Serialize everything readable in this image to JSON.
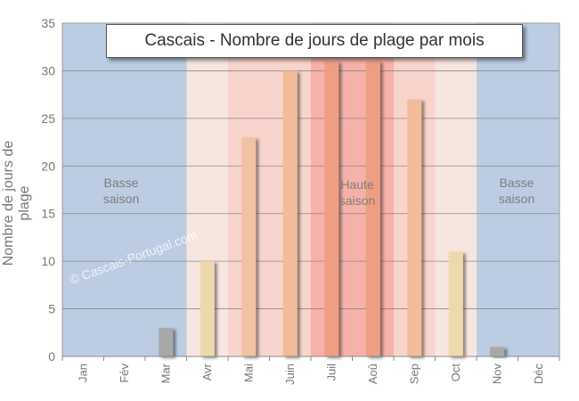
{
  "chart_data": {
    "type": "bar",
    "title": "Cascais - Nombre de jours de plage par mois",
    "ylabel": "Nombre de jours de plage",
    "xlabel": "",
    "categories": [
      "Jan",
      "Fév",
      "Mar",
      "Avr",
      "Mai",
      "Juin",
      "Juil",
      "Aoû",
      "Sep",
      "Oct",
      "Nov",
      "Déc"
    ],
    "values": [
      0,
      0,
      3,
      10,
      23,
      30,
      31,
      31,
      27,
      11,
      1,
      0
    ],
    "ylim": [
      0,
      35
    ],
    "yticks": [
      0,
      5,
      10,
      15,
      20,
      25,
      30,
      35
    ],
    "grid": true,
    "season_labels": {
      "low_left": [
        "Basse",
        "saison"
      ],
      "high": [
        "Haute",
        "saison"
      ],
      "low_right": [
        "Basse",
        "saison"
      ]
    },
    "watermark": "© Cascais-Portugal.com",
    "bar_colors": [
      "#a8a8a8",
      "#a8a8a8",
      "#a8a8a8",
      "#eed9ae",
      "#f1c3a3",
      "#f2bc9a",
      "#ee9f82",
      "#ee9f82",
      "#f2bc9a",
      "#eed9ae",
      "#a8a8a8",
      "#a8a8a8"
    ],
    "month_background_colors": [
      "#bccde3",
      "#bccde3",
      "#bccde3",
      "#f7e6df",
      "#f8d4cd",
      "#f8d4cd",
      "#f6b1aa",
      "#f6b1aa",
      "#f8d4cd",
      "#f7e6df",
      "#bccde3",
      "#bccde3"
    ]
  }
}
